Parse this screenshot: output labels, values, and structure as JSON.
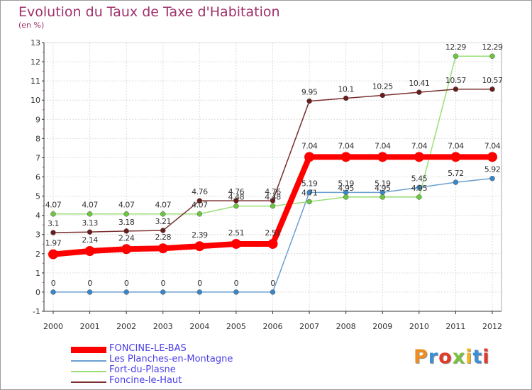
{
  "header": {
    "title": "Evolution du Taux de Taxe d'Habitation",
    "subtitle": "(en %)"
  },
  "logo": {
    "text": "Proxiti",
    "colors": [
      "#f08c1e",
      "#3a8fd6",
      "#e23a2a",
      "#7cc242",
      "#f0b31e",
      "#3a8fd6",
      "#e23a2a"
    ]
  },
  "chart_data": {
    "type": "line",
    "x": [
      "2000",
      "2001",
      "2002",
      "2003",
      "2004",
      "2005",
      "2006",
      "2007",
      "2008",
      "2009",
      "2010",
      "2011",
      "2012"
    ],
    "ylim": [
      -1,
      13
    ],
    "yticks": [
      -1,
      0,
      1,
      2,
      3,
      4,
      5,
      6,
      7,
      8,
      9,
      10,
      11,
      12,
      13
    ],
    "grid": true,
    "legend_position": "bottom-left",
    "series": [
      {
        "name": "Les Planches-en-Montagne",
        "color": "#6a9fcf",
        "point_color": "#3a86c8",
        "values": [
          0,
          0,
          0,
          0,
          0,
          0,
          0,
          5.19,
          5.19,
          5.19,
          5.45,
          5.72,
          5.92
        ],
        "labels": [
          "0",
          "0",
          "0",
          "0",
          "0",
          "0",
          "0",
          "5.19",
          "5.19",
          "5.19",
          "5.45",
          "5.72",
          "5.92"
        ]
      },
      {
        "name": "Fort-du-Plasne",
        "color": "#9adf76",
        "point_color": "#6cc63f",
        "values": [
          4.07,
          4.07,
          4.07,
          4.07,
          4.07,
          4.48,
          4.48,
          4.71,
          4.95,
          4.95,
          4.95,
          12.29,
          12.29
        ],
        "labels": [
          "4.07",
          "4.07",
          "4.07",
          "4.07",
          "4.07",
          "4.48",
          "4.48",
          "4.71",
          "4.95",
          "4.95",
          "4.95",
          "12.29",
          "12.29"
        ]
      },
      {
        "name": "Foncine-le-Haut",
        "color": "#7a2e2e",
        "point_color": "#6a1c1c",
        "values": [
          3.1,
          3.13,
          3.18,
          3.21,
          4.76,
          4.76,
          4.76,
          9.95,
          10.1,
          10.25,
          10.41,
          10.57,
          10.57
        ],
        "labels": [
          "3.1",
          "3.13",
          "3.18",
          "3.21",
          "4.76",
          "4.76",
          "4.76",
          "9.95",
          "10.1",
          "10.25",
          "10.41",
          "10.57",
          "10.57"
        ]
      },
      {
        "name": "FONCINE-LE-BAS",
        "color": "#ff0000",
        "point_color": "#ff0000",
        "values": [
          1.97,
          2.14,
          2.24,
          2.28,
          2.39,
          2.51,
          2.51,
          7.04,
          7.04,
          7.04,
          7.04,
          7.04,
          7.04
        ],
        "labels": [
          "1.97",
          "2.14",
          "2.24",
          "2.28",
          "2.39",
          "2.51",
          "2.51",
          "7.04",
          "7.04",
          "7.04",
          "7.04",
          "7.04",
          "7.04"
        ]
      }
    ],
    "legend_order": [
      "FONCINE-LE-BAS",
      "Les Planches-en-Montagne",
      "Fort-du-Plasne",
      "Foncine-le-Haut"
    ]
  }
}
